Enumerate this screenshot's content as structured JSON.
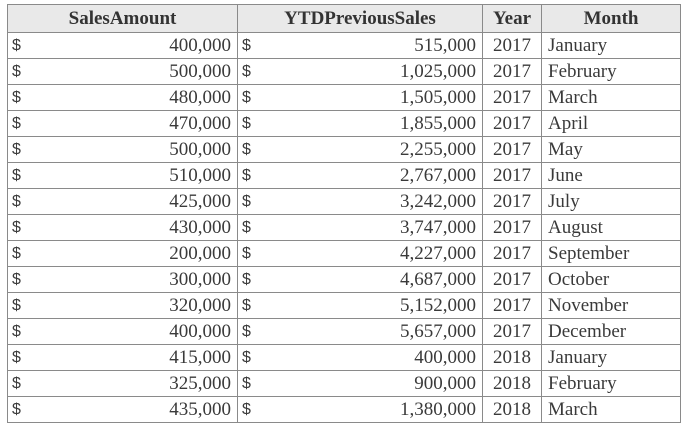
{
  "table": {
    "headers": {
      "sales_amount": "SalesAmount",
      "ytd_previous_sales": "YTDPreviousSales",
      "year": "Year",
      "month": "Month"
    },
    "currency_symbol": "$",
    "rows": [
      {
        "sales_amount": "400,000",
        "ytd_previous_sales": "515,000",
        "year": "2017",
        "month": "January"
      },
      {
        "sales_amount": "500,000",
        "ytd_previous_sales": "1,025,000",
        "year": "2017",
        "month": "February"
      },
      {
        "sales_amount": "480,000",
        "ytd_previous_sales": "1,505,000",
        "year": "2017",
        "month": "March"
      },
      {
        "sales_amount": "470,000",
        "ytd_previous_sales": "1,855,000",
        "year": "2017",
        "month": "April"
      },
      {
        "sales_amount": "500,000",
        "ytd_previous_sales": "2,255,000",
        "year": "2017",
        "month": "May"
      },
      {
        "sales_amount": "510,000",
        "ytd_previous_sales": "2,767,000",
        "year": "2017",
        "month": "June"
      },
      {
        "sales_amount": "425,000",
        "ytd_previous_sales": "3,242,000",
        "year": "2017",
        "month": "July"
      },
      {
        "sales_amount": "430,000",
        "ytd_previous_sales": "3,747,000",
        "year": "2017",
        "month": "August"
      },
      {
        "sales_amount": "200,000",
        "ytd_previous_sales": "4,227,000",
        "year": "2017",
        "month": "September"
      },
      {
        "sales_amount": "300,000",
        "ytd_previous_sales": "4,687,000",
        "year": "2017",
        "month": "October"
      },
      {
        "sales_amount": "320,000",
        "ytd_previous_sales": "5,152,000",
        "year": "2017",
        "month": "November"
      },
      {
        "sales_amount": "400,000",
        "ytd_previous_sales": "5,657,000",
        "year": "2017",
        "month": "December"
      },
      {
        "sales_amount": "415,000",
        "ytd_previous_sales": "400,000",
        "year": "2018",
        "month": "January"
      },
      {
        "sales_amount": "325,000",
        "ytd_previous_sales": "900,000",
        "year": "2018",
        "month": "February"
      },
      {
        "sales_amount": "435,000",
        "ytd_previous_sales": "1,380,000",
        "year": "2018",
        "month": "March"
      }
    ]
  }
}
